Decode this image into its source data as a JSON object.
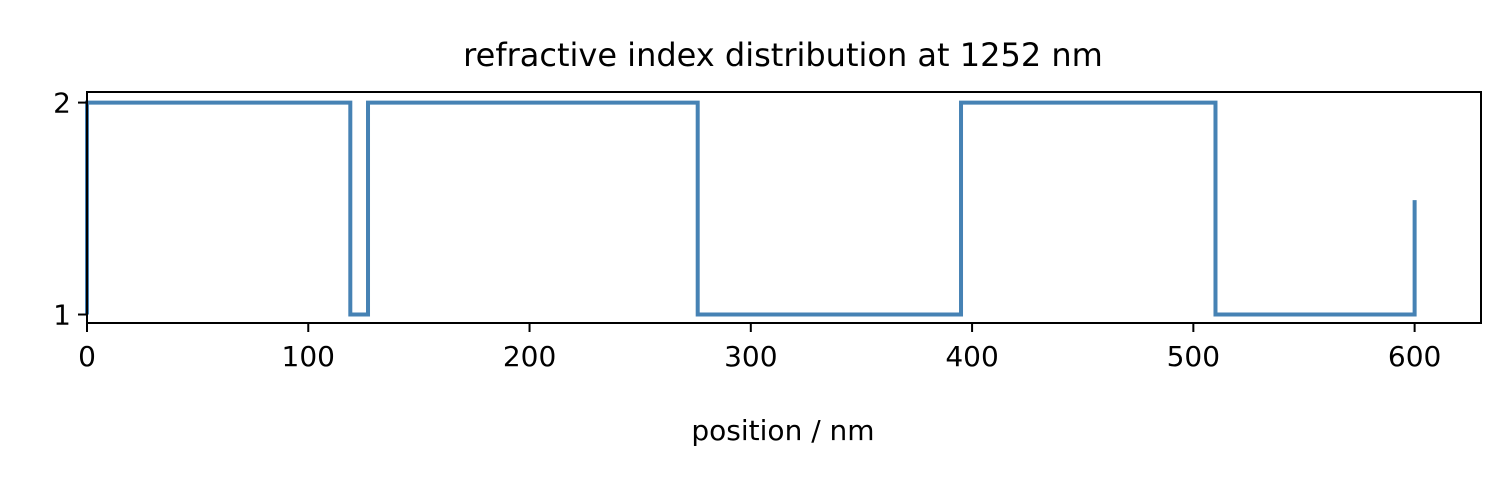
{
  "chart_data": {
    "type": "line",
    "title": "refractive index distribution at  1252 nm",
    "xlabel": "position / nm",
    "ylabel": "",
    "xlim": [
      0,
      630
    ],
    "ylim": [
      0.96,
      2.05
    ],
    "xticks": [
      0,
      100,
      200,
      300,
      400,
      500,
      600
    ],
    "yticks": [
      1,
      2
    ],
    "grid": false,
    "legend": "none",
    "series": [
      {
        "color": "#4682b4",
        "x": [
          0,
          0,
          119,
          119,
          127,
          127,
          276,
          276,
          395,
          395,
          510,
          510,
          600,
          600
        ],
        "y": [
          1.0,
          2.0,
          2.0,
          1.0,
          1.0,
          2.0,
          2.0,
          1.0,
          1.0,
          2.0,
          2.0,
          1.0,
          1.0,
          1.54
        ]
      }
    ]
  }
}
